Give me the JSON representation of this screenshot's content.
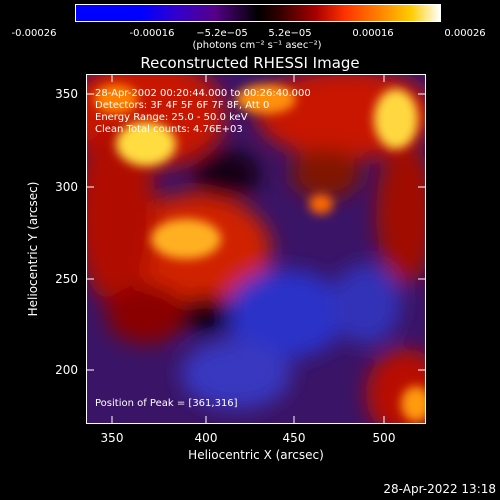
{
  "colorbar": {
    "ticks": [
      "-0.00026",
      "-0.00016",
      "−5.2e−05",
      "5.2e−05",
      "0.00016",
      "0.00026"
    ],
    "units": "(photons cm⁻² s⁻¹ asec⁻²)",
    "range": [
      -0.00026,
      0.00026
    ]
  },
  "title": "Reconstructed RHESSI Image",
  "info": {
    "time": "28-Apr-2002 00:20:44.000 to 00:26:40.000",
    "detectors": "Detectors: 3F 4F 5F 6F 7F 8F, Att 0",
    "energy": "Energy Range: 25.0 - 50.0 keV",
    "method": "Clean    Total counts: 4.76E+03",
    "peak": "Position of Peak = [361,316]"
  },
  "axes": {
    "xlabel": "Heliocentric X (arcsec)",
    "ylabel": "Heliocentric Y (arcsec)",
    "xticks": [
      "350",
      "400",
      "450",
      "500"
    ],
    "yticks": [
      "350",
      "300",
      "250",
      "200"
    ],
    "xlim": [
      327,
      522
    ],
    "ylim": [
      168,
      368
    ]
  },
  "timestamp": "28-Apr-2022 13:18"
}
